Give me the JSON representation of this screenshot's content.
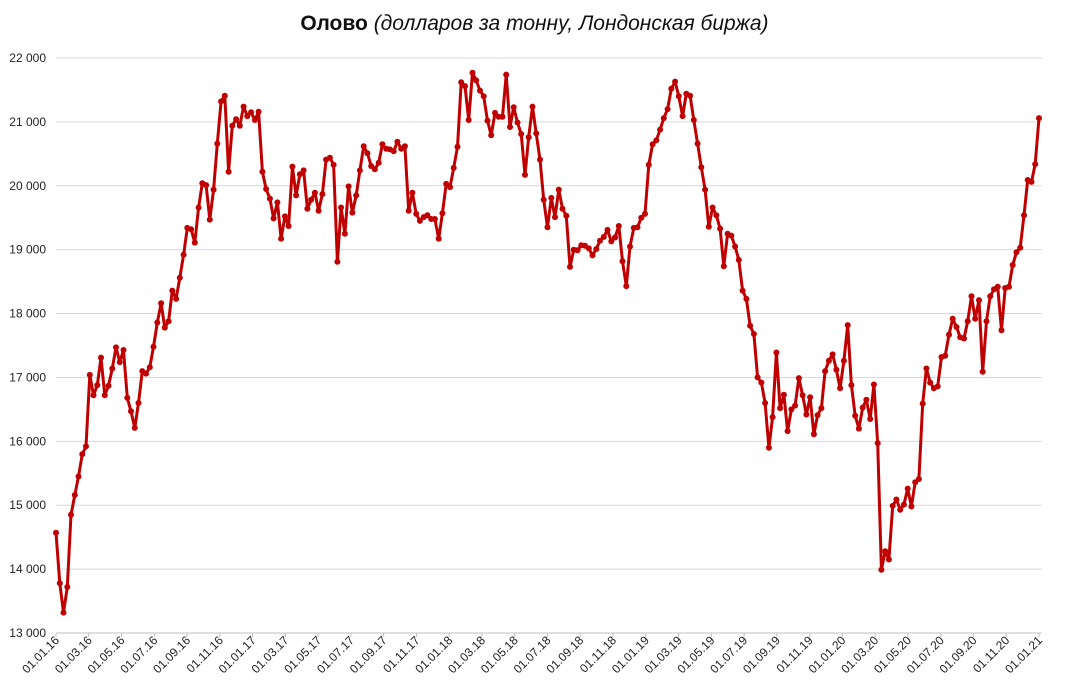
{
  "title": {
    "main": "Олово",
    "sub": "(долларов за тонну, Лондонская биржа)"
  },
  "colors": {
    "series": "#c00000",
    "grid": "#d9d9d9"
  },
  "chart_data": {
    "type": "line",
    "ylim": [
      13000,
      22000
    ],
    "yticks": [
      "13 000",
      "14 000",
      "15 000",
      "16 000",
      "17 000",
      "18 000",
      "19 000",
      "20 000",
      "21 000",
      "22 000"
    ],
    "xticks": [
      "01.01.16",
      "01.03.16",
      "01.05.16",
      "01.07.16",
      "01.09.16",
      "01.11.16",
      "01.01.17",
      "01.03.17",
      "01.05.17",
      "01.07.17",
      "01.09.17",
      "01.11.17",
      "01.01.18",
      "01.03.18",
      "01.05.18",
      "01.07.18",
      "01.09.18",
      "01.11.18",
      "01.01.19",
      "01.03.19",
      "01.05.19",
      "01.07.19",
      "01.09.19",
      "01.11.19",
      "01.01.20",
      "01.03.20",
      "01.05.20",
      "01.07.20",
      "01.09.20",
      "01.11.20",
      "01.01.21"
    ],
    "grid": true,
    "legend": "none",
    "series": [
      {
        "values": [
          14570,
          13780,
          13320,
          13720,
          14850,
          15160,
          15450,
          15800,
          15920,
          17040,
          16720,
          16880,
          17310,
          16720,
          16870,
          17140,
          17470,
          17240,
          17430,
          16680,
          16470,
          16210,
          16600,
          17100,
          17060,
          17160,
          17480,
          17860,
          18160,
          17780,
          17880,
          18360,
          18230,
          18560,
          18920,
          19340,
          19320,
          19110,
          19660,
          20040,
          20010,
          19470,
          19940,
          20660,
          21320,
          21410,
          20220,
          20940,
          21040,
          20940,
          21240,
          21090,
          21150,
          21030,
          21160,
          20220,
          19950,
          19800,
          19490,
          19740,
          19170,
          19520,
          19370,
          20300,
          19850,
          20180,
          20240,
          19640,
          19780,
          19890,
          19610,
          19870,
          20410,
          20440,
          20330,
          18810,
          19660,
          19250,
          19990,
          19580,
          19850,
          20240,
          20620,
          20510,
          20310,
          20260,
          20360,
          20650,
          20580,
          20570,
          20540,
          20690,
          20580,
          20620,
          19610,
          19890,
          19560,
          19450,
          19510,
          19540,
          19480,
          19480,
          19170,
          19570,
          20030,
          19980,
          20280,
          20610,
          21620,
          21560,
          21030,
          21770,
          21650,
          21490,
          21400,
          21020,
          20790,
          21140,
          21080,
          21080,
          21740,
          20920,
          21230,
          20990,
          20810,
          20170,
          20760,
          21240,
          20820,
          20410,
          19780,
          19350,
          19810,
          19510,
          19940,
          19640,
          19530,
          18730,
          19000,
          18990,
          19070,
          19060,
          19020,
          18910,
          19010,
          19140,
          19200,
          19310,
          19130,
          19190,
          19370,
          18820,
          18430,
          19050,
          19340,
          19350,
          19500,
          19560,
          20330,
          20650,
          20710,
          20880,
          21060,
          21200,
          21520,
          21630,
          21400,
          21090,
          21440,
          21410,
          21030,
          20660,
          20290,
          19940,
          19360,
          19660,
          19540,
          19330,
          18740,
          19250,
          19220,
          19050,
          18840,
          18360,
          18230,
          17810,
          17680,
          17000,
          16920,
          16600,
          15900,
          16380,
          17390,
          16520,
          16730,
          16160,
          16500,
          16560,
          16990,
          16720,
          16420,
          16690,
          16110,
          16410,
          16520,
          17100,
          17260,
          17360,
          17120,
          16830,
          17260,
          17820,
          16880,
          16400,
          16200,
          16530,
          16650,
          16350,
          16890,
          15970,
          13990,
          14280,
          14150,
          14990,
          15090,
          14930,
          15010,
          15260,
          14980,
          15360,
          15410,
          16590,
          17140,
          16920,
          16830,
          16860,
          17320,
          17340,
          17670,
          17920,
          17790,
          17630,
          17610,
          17880,
          18270,
          17920,
          18210,
          17090,
          17880,
          18270,
          18380,
          18420,
          17740,
          18400,
          18420,
          18760,
          18960,
          19030,
          19540,
          20090,
          20060,
          20340,
          21060
        ]
      }
    ]
  }
}
